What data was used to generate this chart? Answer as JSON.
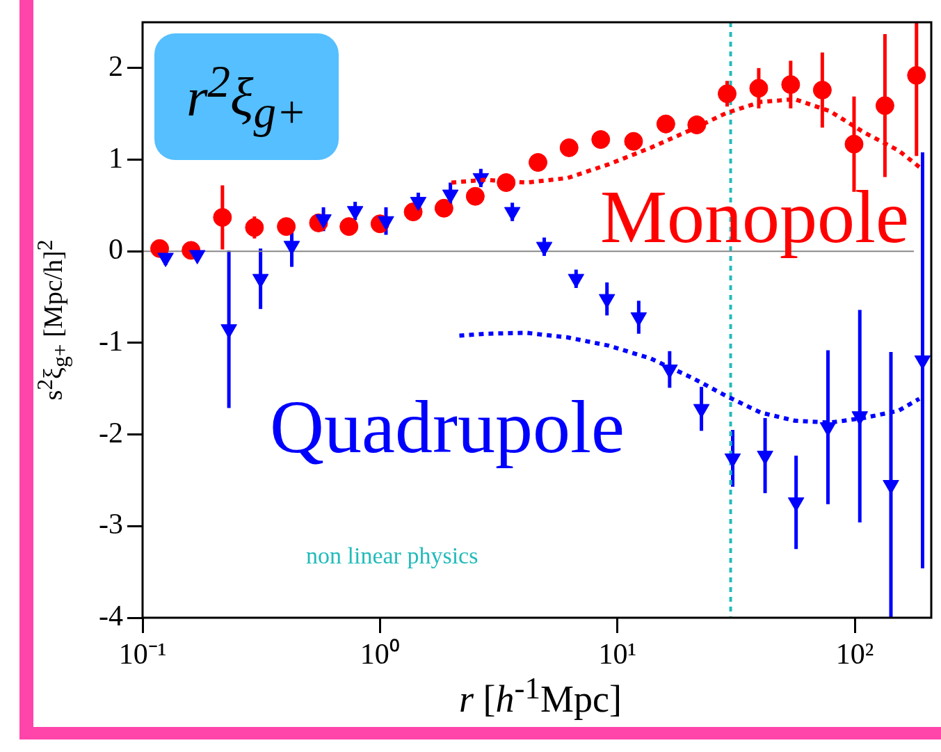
{
  "chart_data": {
    "type": "scatter",
    "xlabel": "r [h$^{-1}$Mpc]",
    "ylabel": "s$^{2}$ξ$_{g+}$ [Mpc/h]$^{2}$",
    "log": "x",
    "xlim": [
      0.1,
      210
    ],
    "ylim": [
      -4,
      2.5
    ],
    "xticks": [
      {
        "value": 0.1,
        "label": "10⁻¹"
      },
      {
        "value": 1,
        "label": "10⁰"
      },
      {
        "value": 10,
        "label": "10¹"
      },
      {
        "value": 100,
        "label": "10²"
      }
    ],
    "yticks": [
      -4,
      -3,
      -2,
      -1,
      0,
      1,
      2
    ],
    "ref_lines": [
      {
        "axis": "x",
        "value": 30,
        "color": "#22bbbb",
        "line_style": "dotted"
      },
      {
        "axis": "y",
        "value": 0,
        "color": "#888888",
        "line_style": "solid"
      }
    ],
    "annotations": [
      "r$^{2}$ξ$_{g+}$",
      "non linear physics"
    ],
    "series": [
      {
        "name": "Monopole",
        "marker": "circle",
        "color": "#ff0000",
        "x": [
          0.118,
          0.16,
          0.217,
          0.296,
          0.403,
          0.551,
          0.74,
          1.0,
          1.38,
          1.86,
          2.52,
          3.4,
          4.63,
          6.26,
          8.51,
          11.7,
          16.0,
          21.6,
          29.0,
          39.4,
          53.7,
          73,
          99.3,
          134,
          182
        ],
        "values": [
          0.03,
          0.01,
          0.37,
          0.26,
          0.27,
          0.31,
          0.27,
          0.3,
          0.43,
          0.47,
          0.6,
          0.75,
          0.97,
          1.13,
          1.22,
          1.2,
          1.39,
          1.38,
          1.72,
          1.78,
          1.82,
          1.76,
          1.17,
          1.59,
          1.92
        ],
        "errors": [
          null,
          null,
          0.35,
          0.12,
          null,
          null,
          null,
          null,
          null,
          null,
          null,
          null,
          null,
          null,
          null,
          null,
          0.1,
          0.1,
          0.14,
          0.22,
          0.26,
          0.41,
          0.52,
          0.78,
          [
            1.04,
            2.5
          ]
        ]
      },
      {
        "name": "Quadrupole",
        "marker": "triangle",
        "color": "#0000ff",
        "x": [
          0.125,
          0.17,
          0.231,
          0.314,
          0.425,
          0.578,
          0.786,
          1.06,
          1.45,
          1.98,
          2.66,
          3.61,
          4.92,
          6.7,
          9.04,
          12.3,
          16.6,
          22.6,
          30.6,
          41.9,
          56.6,
          77.1,
          105,
          142,
          193
        ],
        "values": [
          -0.07,
          -0.04,
          -0.85,
          -0.3,
          0.06,
          0.35,
          0.44,
          0.33,
          0.54,
          0.62,
          0.8,
          0.43,
          0.05,
          -0.3,
          -0.52,
          -0.72,
          -1.29,
          -1.72,
          -2.26,
          -2.23,
          -2.74,
          -1.92,
          -1.8,
          -2.55,
          -1.19
        ],
        "errors": [
          0.08,
          null,
          0.86,
          0.33,
          0.23,
          0.13,
          0.1,
          0.15,
          0.1,
          0.13,
          0.1,
          0.1,
          0.1,
          0.1,
          0.18,
          0.18,
          0.2,
          0.24,
          0.31,
          0.41,
          0.51,
          0.84,
          1.16,
          1.45,
          2.27
        ]
      },
      {
        "type": "line",
        "marker": "none",
        "line_style": "dotted",
        "color": "#ff0000",
        "x": [
          2.0,
          2.77,
          4.14,
          6.17,
          9.2,
          13.8,
          20.6,
          28.8,
          40.1,
          56,
          78.5,
          109,
          153,
          187
        ],
        "values": [
          0.75,
          0.78,
          0.75,
          0.8,
          0.95,
          1.13,
          1.33,
          1.51,
          1.63,
          1.66,
          1.53,
          1.3,
          1.1,
          0.92
        ]
      },
      {
        "type": "line",
        "marker": "none",
        "line_style": "dotted",
        "color": "#0000ff",
        "x": [
          2.16,
          2.77,
          4.14,
          6.17,
          9.2,
          13.8,
          20.6,
          28.8,
          40.1,
          56,
          78.5,
          109,
          153,
          187
        ],
        "values": [
          -0.92,
          -0.9,
          -0.89,
          -0.94,
          -1.03,
          -1.17,
          -1.38,
          -1.58,
          -1.76,
          -1.85,
          -1.87,
          -1.82,
          -1.74,
          -1.61
        ]
      }
    ]
  }
}
